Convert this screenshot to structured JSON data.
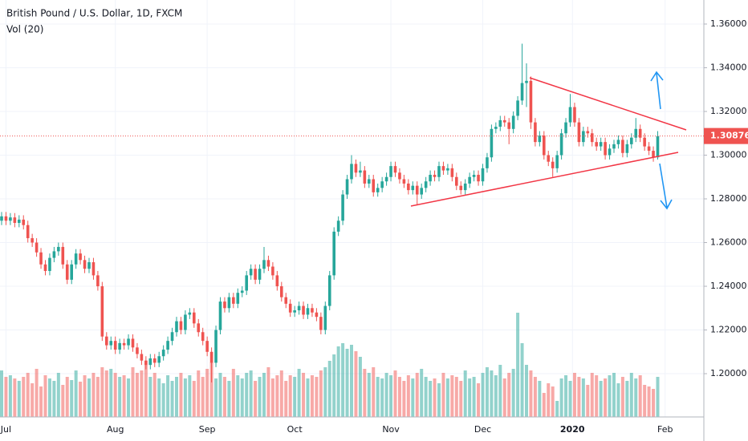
{
  "chart_data": {
    "type": "candlestick",
    "title": "British Pound / U.S. Dollar, 1D, FXCM",
    "volume_label": "Vol (20)",
    "up_color": "#26a69a",
    "down_color": "#ef5350",
    "ylim": [
      1.1802,
      1.371
    ],
    "yticks": [
      {
        "value": 1.36,
        "label": "1.36000"
      },
      {
        "value": 1.34,
        "label": "1.34000"
      },
      {
        "value": 1.32,
        "label": "1.32000"
      },
      {
        "value": 1.3,
        "label": "1.30000"
      },
      {
        "value": 1.28,
        "label": "1.28000"
      },
      {
        "value": 1.26,
        "label": "1.26000"
      },
      {
        "value": 1.24,
        "label": "1.24000"
      },
      {
        "value": 1.22,
        "label": "1.22000"
      },
      {
        "value": 1.2,
        "label": "1.20000"
      }
    ],
    "xticks": [
      {
        "value": 1,
        "label": "Jul"
      },
      {
        "value": 26,
        "label": "Aug"
      },
      {
        "value": 47,
        "label": "Sep"
      },
      {
        "value": 67,
        "label": "Oct"
      },
      {
        "value": 89,
        "label": "Nov"
      },
      {
        "value": 110,
        "label": "Dec"
      },
      {
        "value": 130.5,
        "label": "2020"
      },
      {
        "value": 151.7,
        "label": "Feb"
      }
    ],
    "grid": true,
    "last_price": {
      "value": 1.30876,
      "label": "1.30876"
    },
    "volume_ylim": [
      0,
      520
    ],
    "open": [
      1.27,
      1.272,
      1.27,
      1.2715,
      1.269,
      1.2705,
      1.268,
      1.262,
      1.26,
      1.2555,
      1.25,
      1.247,
      1.253,
      1.256,
      1.258,
      1.25,
      1.243,
      1.25,
      1.255,
      1.252,
      1.248,
      1.251,
      1.245,
      1.24,
      1.217,
      1.213,
      1.215,
      1.211,
      1.214,
      1.213,
      1.216,
      1.212,
      1.209,
      1.206,
      1.204,
      1.207,
      1.205,
      1.208,
      1.211,
      1.215,
      1.219,
      1.224,
      1.22,
      1.227,
      1.228,
      1.223,
      1.219,
      1.215,
      1.21,
      1.205,
      1.22,
      1.233,
      1.23,
      1.235,
      1.232,
      1.237,
      1.238,
      1.245,
      1.248,
      1.243,
      1.248,
      1.252,
      1.249,
      1.245,
      1.24,
      1.235,
      1.232,
      1.228,
      1.229,
      1.231,
      1.227,
      1.23,
      1.228,
      1.226,
      1.22,
      1.231,
      1.245,
      1.265,
      1.27,
      1.282,
      1.289,
      1.296,
      1.292,
      1.293,
      1.287,
      1.289,
      1.283,
      1.285,
      1.288,
      1.29,
      1.295,
      1.292,
      1.289,
      1.287,
      1.284,
      1.286,
      1.282,
      1.285,
      1.288,
      1.291,
      1.29,
      1.295,
      1.293,
      1.294,
      1.29,
      1.286,
      1.284,
      1.287,
      1.29,
      1.291,
      1.288,
      1.294,
      1.299,
      1.312,
      1.313,
      1.316,
      1.315,
      1.312,
      1.318,
      1.325,
      1.333,
      1.334,
      1.315,
      1.306,
      1.309,
      1.3,
      1.297,
      1.294,
      1.3,
      1.31,
      1.315,
      1.322,
      1.315,
      1.306,
      1.311,
      1.31,
      1.306,
      1.304,
      1.306,
      1.3,
      1.303,
      1.305,
      1.307,
      1.301,
      1.305,
      1.308,
      1.312,
      1.308,
      1.304,
      1.302,
      1.299
    ],
    "high": [
      1.274,
      1.274,
      1.2735,
      1.2735,
      1.2725,
      1.2725,
      1.27,
      1.264,
      1.262,
      1.2575,
      1.252,
      1.255,
      1.258,
      1.26,
      1.26,
      1.252,
      1.252,
      1.257,
      1.257,
      1.254,
      1.253,
      1.253,
      1.247,
      1.242,
      1.219,
      1.217,
      1.217,
      1.216,
      1.216,
      1.218,
      1.218,
      1.214,
      1.211,
      1.208,
      1.209,
      1.209,
      1.21,
      1.213,
      1.217,
      1.221,
      1.226,
      1.226,
      1.229,
      1.23,
      1.23,
      1.225,
      1.221,
      1.217,
      1.212,
      1.222,
      1.235,
      1.235,
      1.237,
      1.237,
      1.239,
      1.24,
      1.247,
      1.25,
      1.25,
      1.25,
      1.258,
      1.254,
      1.251,
      1.247,
      1.242,
      1.237,
      1.234,
      1.231,
      1.233,
      1.233,
      1.232,
      1.232,
      1.23,
      1.228,
      1.233,
      1.247,
      1.267,
      1.272,
      1.284,
      1.291,
      1.3,
      1.298,
      1.297,
      1.295,
      1.291,
      1.291,
      1.287,
      1.29,
      1.292,
      1.297,
      1.297,
      1.294,
      1.291,
      1.289,
      1.288,
      1.288,
      1.287,
      1.29,
      1.293,
      1.293,
      1.297,
      1.297,
      1.296,
      1.296,
      1.292,
      1.288,
      1.289,
      1.292,
      1.293,
      1.293,
      1.296,
      1.301,
      1.314,
      1.315,
      1.318,
      1.318,
      1.317,
      1.32,
      1.327,
      1.351,
      1.342,
      1.336,
      1.317,
      1.311,
      1.311,
      1.302,
      1.299,
      1.302,
      1.312,
      1.317,
      1.328,
      1.324,
      1.317,
      1.313,
      1.313,
      1.312,
      1.308,
      1.308,
      1.308,
      1.305,
      1.307,
      1.309,
      1.309,
      1.307,
      1.31,
      1.317,
      1.314,
      1.31,
      1.306,
      1.304,
      1.311
    ],
    "low": [
      1.268,
      1.268,
      1.268,
      1.267,
      1.267,
      1.266,
      1.26,
      1.258,
      1.2535,
      1.248,
      1.245,
      1.245,
      1.251,
      1.254,
      1.248,
      1.241,
      1.241,
      1.248,
      1.25,
      1.246,
      1.246,
      1.243,
      1.238,
      1.215,
      1.211,
      1.211,
      1.209,
      1.209,
      1.211,
      1.211,
      1.21,
      1.207,
      1.204,
      1.202,
      1.202,
      1.203,
      1.203,
      1.206,
      1.209,
      1.213,
      1.217,
      1.218,
      1.218,
      1.225,
      1.221,
      1.217,
      1.213,
      1.208,
      1.196,
      1.203,
      1.218,
      1.228,
      1.228,
      1.23,
      1.23,
      1.235,
      1.236,
      1.243,
      1.241,
      1.241,
      1.246,
      1.247,
      1.243,
      1.238,
      1.233,
      1.23,
      1.226,
      1.226,
      1.227,
      1.225,
      1.225,
      1.226,
      1.224,
      1.218,
      1.218,
      1.229,
      1.243,
      1.263,
      1.268,
      1.28,
      1.287,
      1.29,
      1.29,
      1.285,
      1.285,
      1.281,
      1.281,
      1.283,
      1.286,
      1.288,
      1.29,
      1.287,
      1.285,
      1.282,
      1.282,
      1.277,
      1.28,
      1.283,
      1.286,
      1.288,
      1.288,
      1.291,
      1.291,
      1.288,
      1.284,
      1.282,
      1.282,
      1.285,
      1.288,
      1.286,
      1.286,
      1.292,
      1.297,
      1.31,
      1.311,
      1.313,
      1.305,
      1.31,
      1.316,
      1.323,
      1.322,
      1.312,
      1.304,
      1.304,
      1.298,
      1.295,
      1.29,
      1.292,
      1.298,
      1.308,
      1.313,
      1.313,
      1.304,
      1.304,
      1.308,
      1.304,
      1.302,
      1.302,
      1.298,
      1.298,
      1.301,
      1.303,
      1.299,
      1.299,
      1.303,
      1.306,
      1.306,
      1.302,
      1.3,
      1.297,
      1.298
    ],
    "close": [
      1.272,
      1.27,
      1.2715,
      1.269,
      1.2705,
      1.268,
      1.262,
      1.26,
      1.2555,
      1.25,
      1.247,
      1.253,
      1.256,
      1.258,
      1.25,
      1.243,
      1.25,
      1.255,
      1.252,
      1.248,
      1.251,
      1.245,
      1.24,
      1.217,
      1.213,
      1.215,
      1.211,
      1.214,
      1.213,
      1.216,
      1.212,
      1.209,
      1.206,
      1.204,
      1.207,
      1.205,
      1.208,
      1.211,
      1.215,
      1.219,
      1.224,
      1.22,
      1.227,
      1.228,
      1.223,
      1.219,
      1.215,
      1.21,
      1.205,
      1.22,
      1.233,
      1.23,
      1.235,
      1.232,
      1.237,
      1.238,
      1.245,
      1.248,
      1.243,
      1.248,
      1.252,
      1.249,
      1.245,
      1.24,
      1.235,
      1.232,
      1.228,
      1.229,
      1.231,
      1.227,
      1.23,
      1.228,
      1.226,
      1.22,
      1.231,
      1.245,
      1.265,
      1.27,
      1.282,
      1.289,
      1.296,
      1.292,
      1.293,
      1.287,
      1.289,
      1.283,
      1.285,
      1.288,
      1.29,
      1.295,
      1.292,
      1.289,
      1.287,
      1.284,
      1.286,
      1.282,
      1.285,
      1.288,
      1.291,
      1.29,
      1.295,
      1.293,
      1.294,
      1.29,
      1.286,
      1.284,
      1.287,
      1.29,
      1.291,
      1.288,
      1.294,
      1.299,
      1.312,
      1.313,
      1.316,
      1.315,
      1.312,
      1.318,
      1.325,
      1.333,
      1.334,
      1.315,
      1.306,
      1.309,
      1.3,
      1.297,
      1.294,
      1.3,
      1.31,
      1.315,
      1.322,
      1.315,
      1.306,
      1.311,
      1.31,
      1.306,
      1.304,
      1.306,
      1.3,
      1.303,
      1.305,
      1.307,
      1.301,
      1.305,
      1.308,
      1.312,
      1.308,
      1.304,
      1.302,
      1.299,
      1.30876
    ],
    "volume": [
      58,
      50,
      52,
      48,
      45,
      50,
      55,
      42,
      60,
      38,
      52,
      48,
      45,
      55,
      40,
      50,
      46,
      58,
      44,
      52,
      48,
      55,
      50,
      62,
      58,
      60,
      55,
      50,
      52,
      48,
      62,
      55,
      58,
      65,
      50,
      55,
      48,
      42,
      52,
      45,
      50,
      55,
      48,
      52,
      45,
      58,
      50,
      60,
      68,
      48,
      55,
      50,
      45,
      60,
      52,
      48,
      55,
      58,
      45,
      50,
      55,
      62,
      48,
      52,
      58,
      45,
      52,
      50,
      60,
      55,
      48,
      52,
      50,
      58,
      62,
      70,
      78,
      88,
      92,
      85,
      90,
      82,
      75,
      60,
      55,
      62,
      50,
      48,
      55,
      52,
      58,
      50,
      45,
      52,
      48,
      55,
      60,
      50,
      45,
      48,
      42,
      55,
      48,
      52,
      50,
      45,
      58,
      48,
      50,
      42,
      55,
      62,
      58,
      52,
      65,
      48,
      55,
      60,
      130,
      92,
      65,
      58,
      50,
      45,
      30,
      42,
      38,
      20,
      48,
      52,
      45,
      55,
      50,
      48,
      40,
      55,
      52,
      45,
      48,
      52,
      55,
      42,
      50,
      45,
      55,
      48,
      52,
      40,
      38,
      35,
      50
    ]
  }
}
